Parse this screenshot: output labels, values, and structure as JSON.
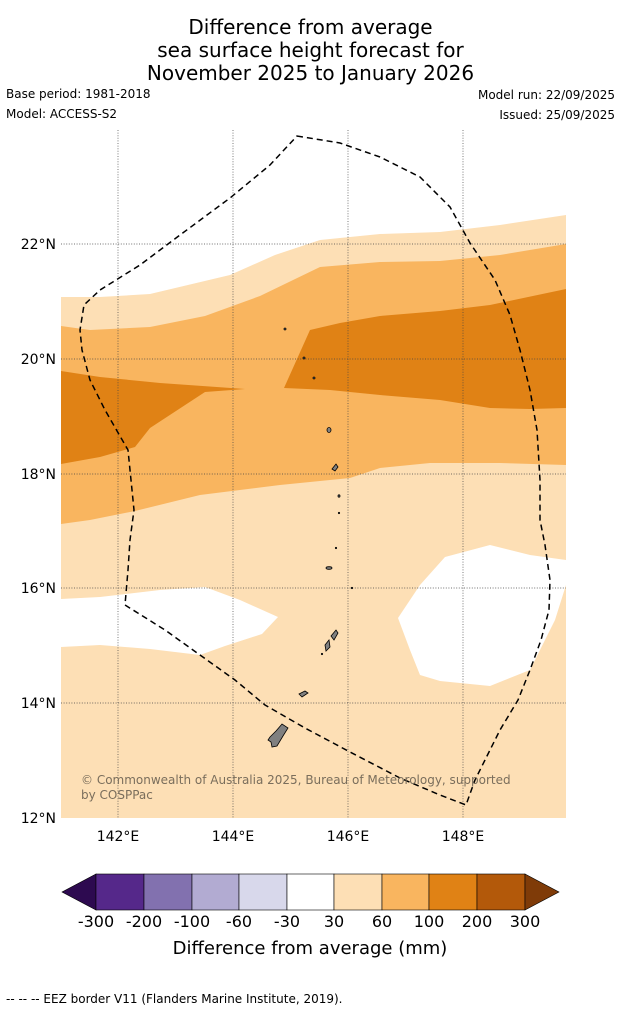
{
  "title": {
    "line1": "Difference from average",
    "line2": "sea surface height forecast for",
    "line3": "November 2025 to January 2026"
  },
  "meta": {
    "base_period": "Base period: 1981-2018",
    "model": "Model: ACCESS-S2",
    "model_run": "Model run: 22/09/2025",
    "issued": "Issued: 25/09/2025"
  },
  "map": {
    "lon_ticks": [
      "142°E",
      "144°E",
      "146°E",
      "148°E"
    ],
    "lat_ticks": [
      "22°N",
      "20°N",
      "18°N",
      "16°N",
      "14°N",
      "12°N"
    ],
    "lon_range": [
      141.0,
      149.8
    ],
    "lat_range": [
      12.0,
      24.0
    ],
    "copyright": "© Commonwealth of Australia 2025, Bureau of Meteorology, supported by COSPPac"
  },
  "colorbar": {
    "labels": [
      "-300",
      "-200",
      "-100",
      "-60",
      "-30",
      "30",
      "60",
      "100",
      "200",
      "300"
    ],
    "colors": [
      "#2d0a50",
      "#55288a",
      "#8271af",
      "#b2abd2",
      "#d8d8eb",
      "#ffffff",
      "#fddfb5",
      "#f9b55f",
      "#e08215",
      "#b3590a",
      "#7f3b08"
    ],
    "title": "Difference from average (mm)"
  },
  "footer": {
    "legend_text": "--  --  -- EEZ border V11 (Flanders Marine Institute, 2019)."
  }
}
